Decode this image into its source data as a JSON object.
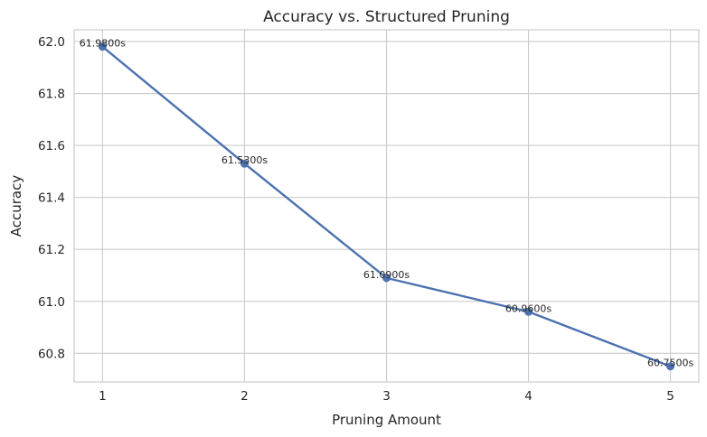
{
  "chart_data": {
    "type": "line",
    "title": "Accuracy vs. Structured Pruning",
    "xlabel": "Pruning Amount",
    "ylabel": "Accuracy",
    "x": [
      1,
      2,
      3,
      4,
      5
    ],
    "series": [
      {
        "values": [
          61.98,
          61.53,
          61.09,
          60.96,
          60.75
        ],
        "labels": [
          "61.9800s",
          "61.5300s",
          "61.0900s",
          "60.9600s",
          "60.7500s"
        ],
        "color": "#4c72b0"
      }
    ],
    "xlim": [
      0.8,
      5.2
    ],
    "ylim": [
      60.69,
      62.045
    ],
    "xticks": [
      1,
      2,
      3,
      4,
      5
    ],
    "yticks": [
      60.8,
      61.0,
      61.2,
      61.4,
      61.6,
      61.8,
      62.0
    ],
    "ytick_labels": [
      "60.8",
      "61.0",
      "61.2",
      "61.4",
      "61.6",
      "61.8",
      "62.0"
    ],
    "grid": true,
    "marker": "circle"
  }
}
